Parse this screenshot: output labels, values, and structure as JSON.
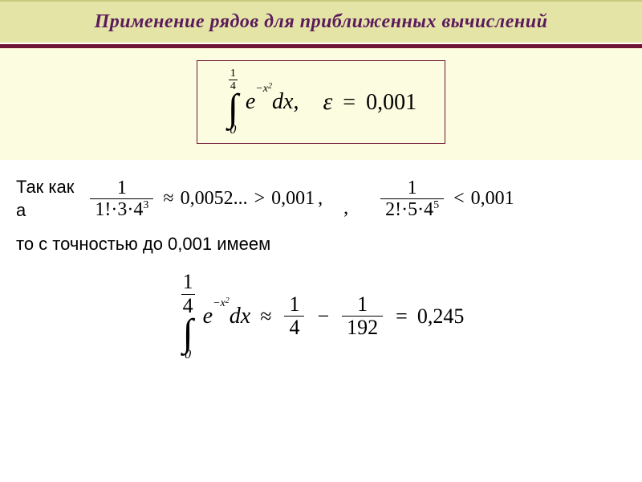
{
  "colors": {
    "header_bg": "#e4e4a7",
    "header_text": "#5b1a5b",
    "header_border_top": "#c9c97a",
    "header_border_bottom": "#ffffff",
    "hr_color": "#6e1334",
    "formula_area_bg": "#fcfce0",
    "formula_box_border": "#6e1334",
    "content_bg": "#ffffff"
  },
  "header": {
    "title": "Применение рядов для приближенных вычислений",
    "fontsize": 24
  },
  "hr": {
    "height": 5
  },
  "formula_box": {
    "integral": {
      "upper_num": "1",
      "upper_den": "4",
      "lower": "0",
      "base": "e",
      "exponent_neg": "−",
      "exponent_var": "x",
      "exponent_pow": "2",
      "dx": "dx",
      "comma": ","
    },
    "epsilon": {
      "symbol": "ε",
      "eq": "=",
      "value": "0,001"
    }
  },
  "content": {
    "intro1": "Так как",
    "intro2": "а",
    "frac1": {
      "num": "1",
      "den_factorial": "1!",
      "den_dot": "·",
      "den_mid": "3",
      "den_base": "4",
      "den_exp": "3"
    },
    "approx": "≈",
    "val1": "0,0052...",
    "gt": ">",
    "thresh": "0,001",
    "comma": ",",
    "frac2": {
      "num": "1",
      "den_factorial": "2!",
      "den_dot": "·",
      "den_mid": "5",
      "den_base": "4",
      "den_exp": "5"
    },
    "lt": "<",
    "line2_text": "то с точностью до 0,001 имеем",
    "result": {
      "approx": "≈",
      "t1_num": "1",
      "t1_den": "4",
      "minus": "−",
      "t2_num": "1",
      "t2_den": "192",
      "eq": "=",
      "value": "0,245"
    }
  }
}
